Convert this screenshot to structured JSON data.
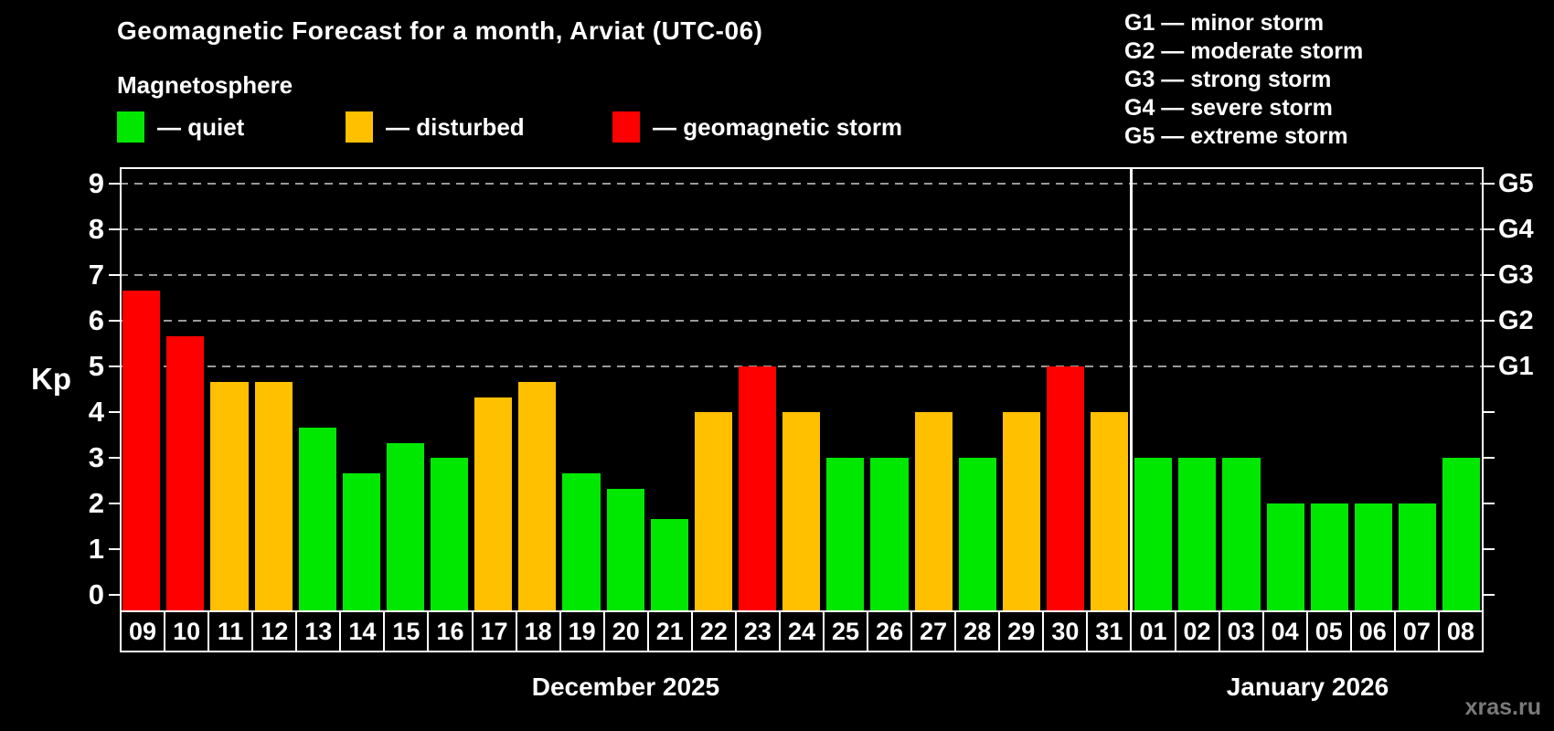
{
  "header": {
    "title": "Geomagnetic Forecast for a month, Arviat (UTC-06)",
    "subtitle": "Magnetosphere"
  },
  "legend": {
    "items": [
      {
        "label": "— quiet",
        "status": "quiet"
      },
      {
        "label": "— disturbed",
        "status": "disturbed"
      },
      {
        "label": "— geomagnetic storm",
        "status": "storm"
      }
    ]
  },
  "g_legend": {
    "items": [
      "G1 — minor storm",
      "G2 — moderate storm",
      "G3 — strong storm",
      "G4 — severe storm",
      "G5 — extreme storm"
    ]
  },
  "watermark": "xras.ru",
  "chart_data": {
    "type": "bar",
    "title": "Geomagnetic Forecast for a month, Arviat (UTC-06)",
    "ylabel": "Kp",
    "xlabel": "",
    "ylim": [
      0,
      9
    ],
    "yticks": [
      0,
      1,
      2,
      3,
      4,
      5,
      6,
      7,
      8,
      9
    ],
    "grid_values": [
      5,
      6,
      7,
      8,
      9
    ],
    "grid_style": "dashed gray horizontal",
    "legend_position": "top-left",
    "right_axis": [
      {
        "label": "G1",
        "value": 5
      },
      {
        "label": "G2",
        "value": 6
      },
      {
        "label": "G3",
        "value": 7
      },
      {
        "label": "G4",
        "value": 8
      },
      {
        "label": "G5",
        "value": 9
      }
    ],
    "months": [
      {
        "label": "December 2025",
        "days": 23
      },
      {
        "label": "January 2026",
        "days": 8
      }
    ],
    "status_colors": {
      "quiet": "#00e800",
      "disturbed": "#ffc000",
      "storm": "#ff0000"
    },
    "bars": [
      {
        "day": "09",
        "value": 6.67,
        "status": "storm"
      },
      {
        "day": "10",
        "value": 5.67,
        "status": "storm"
      },
      {
        "day": "11",
        "value": 4.67,
        "status": "disturbed"
      },
      {
        "day": "12",
        "value": 4.67,
        "status": "disturbed"
      },
      {
        "day": "13",
        "value": 3.67,
        "status": "quiet"
      },
      {
        "day": "14",
        "value": 2.67,
        "status": "quiet"
      },
      {
        "day": "15",
        "value": 3.33,
        "status": "quiet"
      },
      {
        "day": "16",
        "value": 3.0,
        "status": "quiet"
      },
      {
        "day": "17",
        "value": 4.33,
        "status": "disturbed"
      },
      {
        "day": "18",
        "value": 4.67,
        "status": "disturbed"
      },
      {
        "day": "19",
        "value": 2.67,
        "status": "quiet"
      },
      {
        "day": "20",
        "value": 2.33,
        "status": "quiet"
      },
      {
        "day": "21",
        "value": 1.67,
        "status": "quiet"
      },
      {
        "day": "22",
        "value": 4.0,
        "status": "disturbed"
      },
      {
        "day": "23",
        "value": 5.0,
        "status": "storm"
      },
      {
        "day": "24",
        "value": 4.0,
        "status": "disturbed"
      },
      {
        "day": "25",
        "value": 3.0,
        "status": "quiet"
      },
      {
        "day": "26",
        "value": 3.0,
        "status": "quiet"
      },
      {
        "day": "27",
        "value": 4.0,
        "status": "disturbed"
      },
      {
        "day": "28",
        "value": 3.0,
        "status": "quiet"
      },
      {
        "day": "29",
        "value": 4.0,
        "status": "disturbed"
      },
      {
        "day": "30",
        "value": 5.0,
        "status": "storm"
      },
      {
        "day": "31",
        "value": 4.0,
        "status": "disturbed"
      },
      {
        "day": "01",
        "value": 3.0,
        "status": "quiet"
      },
      {
        "day": "02",
        "value": 3.0,
        "status": "quiet"
      },
      {
        "day": "03",
        "value": 3.0,
        "status": "quiet"
      },
      {
        "day": "04",
        "value": 2.0,
        "status": "quiet"
      },
      {
        "day": "05",
        "value": 2.0,
        "status": "quiet"
      },
      {
        "day": "06",
        "value": 2.0,
        "status": "quiet"
      },
      {
        "day": "07",
        "value": 2.0,
        "status": "quiet"
      },
      {
        "day": "08",
        "value": 3.0,
        "status": "quiet"
      }
    ]
  }
}
